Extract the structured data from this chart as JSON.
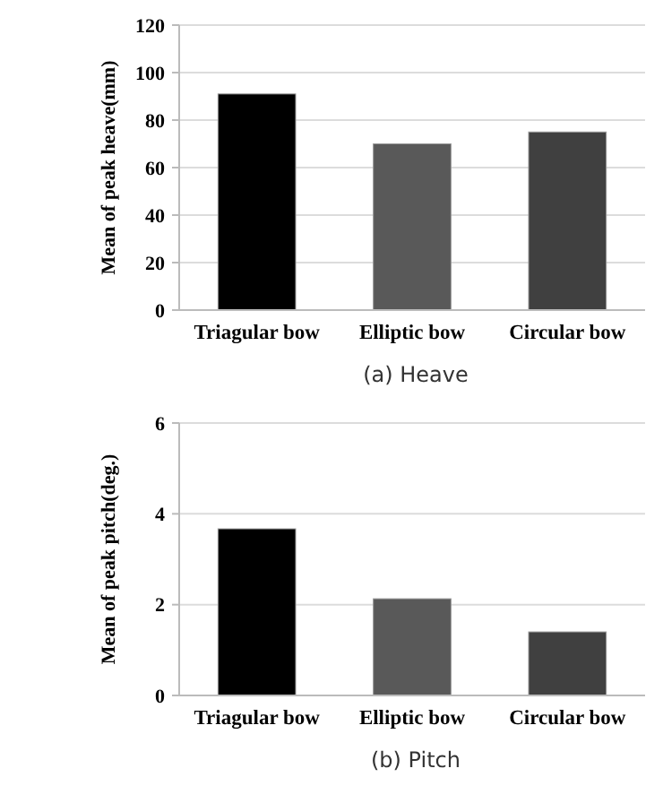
{
  "chart_data": [
    {
      "type": "bar",
      "title": "(a)  Heave",
      "ylabel": "Mean of peak heave(mm)",
      "categories": [
        "Triagular bow",
        "Elliptic bow",
        "Circular bow"
      ],
      "values": [
        91,
        70,
        75
      ],
      "colors": [
        "#000000",
        "#595959",
        "#404040"
      ],
      "ylim": [
        0,
        120
      ],
      "yticks": [
        0,
        20,
        40,
        60,
        80,
        100,
        120
      ],
      "grid": "y"
    },
    {
      "type": "bar",
      "title": "(b)  Pitch",
      "ylabel": "Mean of peak pitch(deg.)",
      "categories": [
        "Triagular bow",
        "Elliptic bow",
        "Circular bow"
      ],
      "values": [
        3.67,
        2.13,
        1.4
      ],
      "colors": [
        "#000000",
        "#595959",
        "#404040"
      ],
      "ylim": [
        0,
        6
      ],
      "yticks": [
        0,
        2,
        4,
        6
      ],
      "grid": "y"
    }
  ]
}
